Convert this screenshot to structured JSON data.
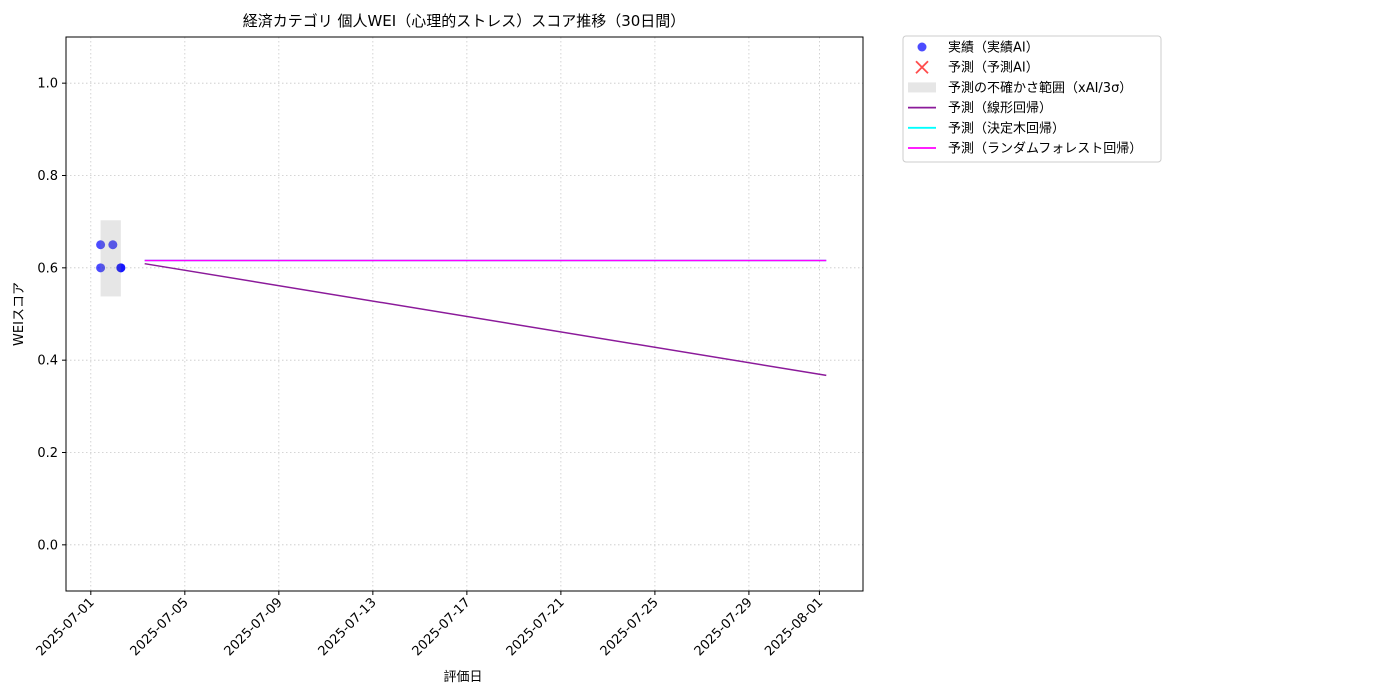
{
  "chart_data": {
    "type": "line",
    "title": "経済カテゴリ 個人WEI（心理的ストレス）スコア推移（30日間）",
    "xlabel": "評価日",
    "ylabel": "WEIスコア",
    "xlim": [
      "2025-06-29T22:40",
      "2025-08-02T20:30"
    ],
    "ylim": [
      -0.1,
      1.1
    ],
    "xticks": [
      "2025-07-01",
      "2025-07-05",
      "2025-07-09",
      "2025-07-13",
      "2025-07-17",
      "2025-07-21",
      "2025-07-25",
      "2025-07-29",
      "2025-08-01"
    ],
    "yticks": [
      {
        "value": 0,
        "label": "0.0"
      },
      {
        "value": 0.2,
        "label": "0.2"
      },
      {
        "value": 0.4,
        "label": "0.4"
      },
      {
        "value": 0.6,
        "label": "0.6"
      },
      {
        "value": 0.8,
        "label": "0.8"
      },
      {
        "value": 1,
        "label": "1.0"
      }
    ],
    "grid": true,
    "legend": "outside upper right",
    "series": [
      {
        "name": "実績（実績AI）",
        "kind": "scatter",
        "marker": "o",
        "color": "#0000ff",
        "x": [
          "2025-07-01T10:00",
          "2025-07-01T10:00",
          "2025-07-01T22:30",
          "2025-07-02T06:40",
          "2025-07-02T06:40"
        ],
        "values": [
          0.65,
          0.6,
          0.65,
          0.6,
          0.6
        ]
      },
      {
        "name": "予測（予測AI）",
        "kind": "scatter",
        "marker": "x",
        "color": "#ff0000",
        "x": [],
        "values": []
      },
      {
        "name": "予測の不確かさ範囲（xAI/3σ）",
        "kind": "band",
        "color": "#808080",
        "x": [
          "2025-07-01T10:00",
          "2025-07-02T06:40"
        ],
        "lower": [
          0.538,
          0.538
        ],
        "upper": [
          0.703,
          0.703
        ]
      },
      {
        "name": "予測（線形回帰）",
        "kind": "line",
        "color": "#8b1a9a",
        "x": [
          "2025-07-03T07:00",
          "2025-08-01T07:00"
        ],
        "values": [
          0.609,
          0.367
        ]
      },
      {
        "name": "予測（決定木回帰）",
        "kind": "line",
        "color": "#00ffff",
        "x": [
          "2025-07-03T07:00",
          "2025-08-01T07:00"
        ],
        "values": [
          0.616,
          0.616
        ]
      },
      {
        "name": "予測（ランダムフォレスト回帰）",
        "kind": "line",
        "color": "#ff00ff",
        "x": [
          "2025-07-03T07:00",
          "2025-08-01T07:00"
        ],
        "values": [
          0.616,
          0.616
        ]
      }
    ]
  }
}
